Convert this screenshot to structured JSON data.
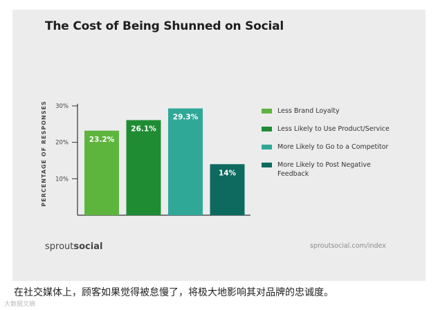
{
  "header": {
    "title": "The Cost of Being Shunned on Social"
  },
  "footer": {
    "brand_light": "sprout",
    "brand_bold": "social",
    "url": "sproutsocial.com/index"
  },
  "caption": "在社交媒体上，顾客如果觉得被怠慢了，将极大地影响其对品牌的忠诚度。",
  "watermark": "大数据文摘",
  "chart_data": {
    "type": "bar",
    "title": "The Cost of Being Shunned on Social",
    "xlabel": "",
    "ylabel": "PERCENTAGE OF RESPONSES",
    "ylim": [
      0,
      30
    ],
    "yticks": [
      10,
      20,
      30
    ],
    "ytick_labels": [
      "10%",
      "20%",
      "30%"
    ],
    "grid": false,
    "legend_position": "right",
    "series": [
      {
        "name": "Less Brand Loyalty",
        "value": 23.2,
        "label": "23.2%",
        "color": "#5db53e"
      },
      {
        "name": "Less Likely to Use Product/Service",
        "value": 26.1,
        "label": "26.1%",
        "color": "#1f8c34"
      },
      {
        "name": "More Likely to Go to a Competitor",
        "value": 29.3,
        "label": "29.3%",
        "color": "#2fa898"
      },
      {
        "name": "More Likely to Post Negative Feedback",
        "value": 14,
        "label": "14%",
        "color": "#0e6a5f"
      }
    ]
  }
}
